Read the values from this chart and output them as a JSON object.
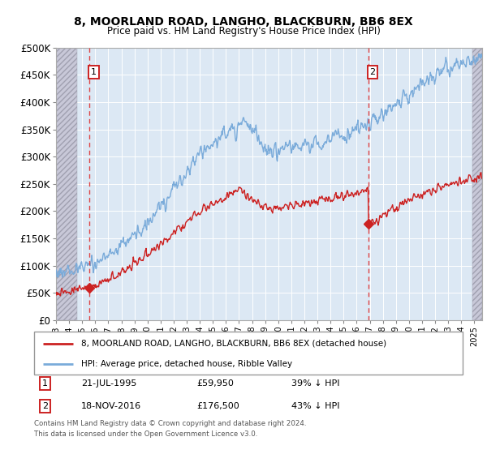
{
  "title": "8, MOORLAND ROAD, LANGHO, BLACKBURN, BB6 8EX",
  "subtitle": "Price paid vs. HM Land Registry's House Price Index (HPI)",
  "sale1_date_label": "21-JUL-1995",
  "sale2_date_label": "18-NOV-2016",
  "sale1_x": 1995.554,
  "sale2_x": 2016.879,
  "sale1_price": 59950,
  "sale2_price": 176500,
  "sale1_pct": "39% ↓ HPI",
  "sale2_pct": "43% ↓ HPI",
  "legend_line1": "8, MOORLAND ROAD, LANGHO, BLACKBURN, BB6 8EX (detached house)",
  "legend_line2": "HPI: Average price, detached house, Ribble Valley",
  "footnote": "Contains HM Land Registry data © Crown copyright and database right 2024.\nThis data is licensed under the Open Government Licence v3.0.",
  "price_line_color": "#cc2222",
  "hpi_line_color": "#7aabda",
  "dashed_line_color": "#dd4444",
  "marker_color": "#cc2222",
  "plot_bg_color": "#dce8f4",
  "grid_color": "#ffffff",
  "ylim": [
    0,
    500000
  ],
  "yticks": [
    0,
    50000,
    100000,
    150000,
    200000,
    250000,
    300000,
    350000,
    400000,
    450000,
    500000
  ],
  "xlim_start": 1993.0,
  "xlim_end": 2025.6,
  "hatch_left_end": 1994.6,
  "hatch_right_start": 2024.85
}
